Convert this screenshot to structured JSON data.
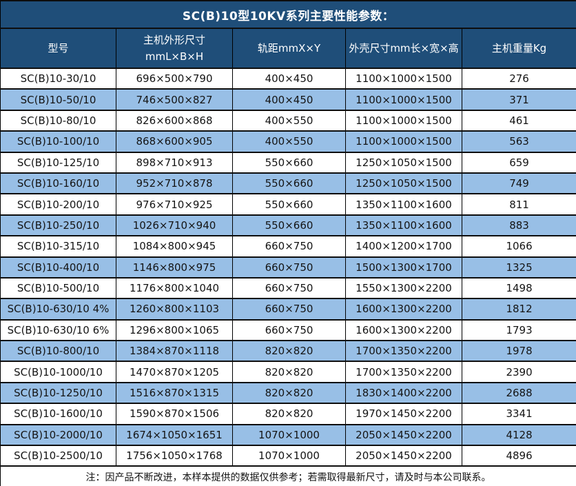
{
  "title": "SC(B)10型10KV系列主要性能参数：",
  "table": {
    "headers": [
      "型号",
      "主机外形尺寸\nmmL×B×H",
      "轨距mmX×Y",
      "外壳尺寸mm长×宽×高",
      "主机重量Kg"
    ],
    "column_keys": [
      "model",
      "dimensions",
      "gauge",
      "shell",
      "weight"
    ],
    "rows": [
      [
        "SC(B)10-30/10",
        "696×500×790",
        "400×450",
        "1100×1000×1500",
        "276"
      ],
      [
        "SC(B)10-50/10",
        "746×500×827",
        "400×450",
        "1100×1000×1500",
        "371"
      ],
      [
        "SC(B)10-80/10",
        "826×600×868",
        "400×550",
        "1100×1000×1500",
        "461"
      ],
      [
        "SC(B)10-100/10",
        "868×600×905",
        "400×550",
        "1100×1000×1500",
        "563"
      ],
      [
        "SC(B)10-125/10",
        "898×710×913",
        "550×660",
        "1250×1050×1500",
        "659"
      ],
      [
        "SC(B)10-160/10",
        "952×710×878",
        "550×660",
        "1250×1050×1500",
        "749"
      ],
      [
        "SC(B)10-200/10",
        "976×710×925",
        "550×660",
        "1350×1100×1600",
        "811"
      ],
      [
        "SC(B)10-250/10",
        "1026×710×940",
        "550×660",
        "1350×1100×1600",
        "883"
      ],
      [
        "SC(B)10-315/10",
        "1084×800×945",
        "660×750",
        "1400×1200×1700",
        "1066"
      ],
      [
        "SC(B)10-400/10",
        "1146×800×975",
        "660×750",
        "1500×1300×1700",
        "1325"
      ],
      [
        "SC(B)10-500/10",
        "1176×800×1040",
        "660×750",
        "1550×1300×2200",
        "1498"
      ],
      [
        "SC(B)10-630/10 4%",
        "1260×800×1103",
        "660×750",
        "1600×1300×2200",
        "1812"
      ],
      [
        "SC(B)10-630/10 6%",
        "1296×800×1065",
        "660×750",
        "1600×1300×2200",
        "1793"
      ],
      [
        "SC(B)10-800/10",
        "1384×870×1118",
        "820×820",
        "1700×1350×2200",
        "1978"
      ],
      [
        "SC(B)10-1000/10",
        "1470×870×1205",
        "820×820",
        "1700×1350×2200",
        "2390"
      ],
      [
        "SC(B)10-1250/10",
        "1516×870×1315",
        "820×820",
        "1830×1400×2200",
        "2688"
      ],
      [
        "SC(B)10-1600/10",
        "1590×870×1506",
        "820×820",
        "1970×1450×2200",
        "3341"
      ],
      [
        "SC(B)10-2000/10",
        "1674×1050×1651",
        "1070×1000",
        "2050×1450×2200",
        "4128"
      ],
      [
        "SC(B)10-2500/10",
        "1756×1050×1768",
        "1070×1000",
        "2050×1450×2200",
        "4896"
      ]
    ]
  },
  "note": "注：因产品不断改进，本样本提供的数据仅供参考；若需取得最新尺寸，请及时与本公司联系。",
  "colors": {
    "header_bg": "#1F4E79",
    "zebra_row_bg": "#98BFE6",
    "border": "#000000",
    "header_text": "#FFFFFF",
    "body_text": "#141414"
  }
}
